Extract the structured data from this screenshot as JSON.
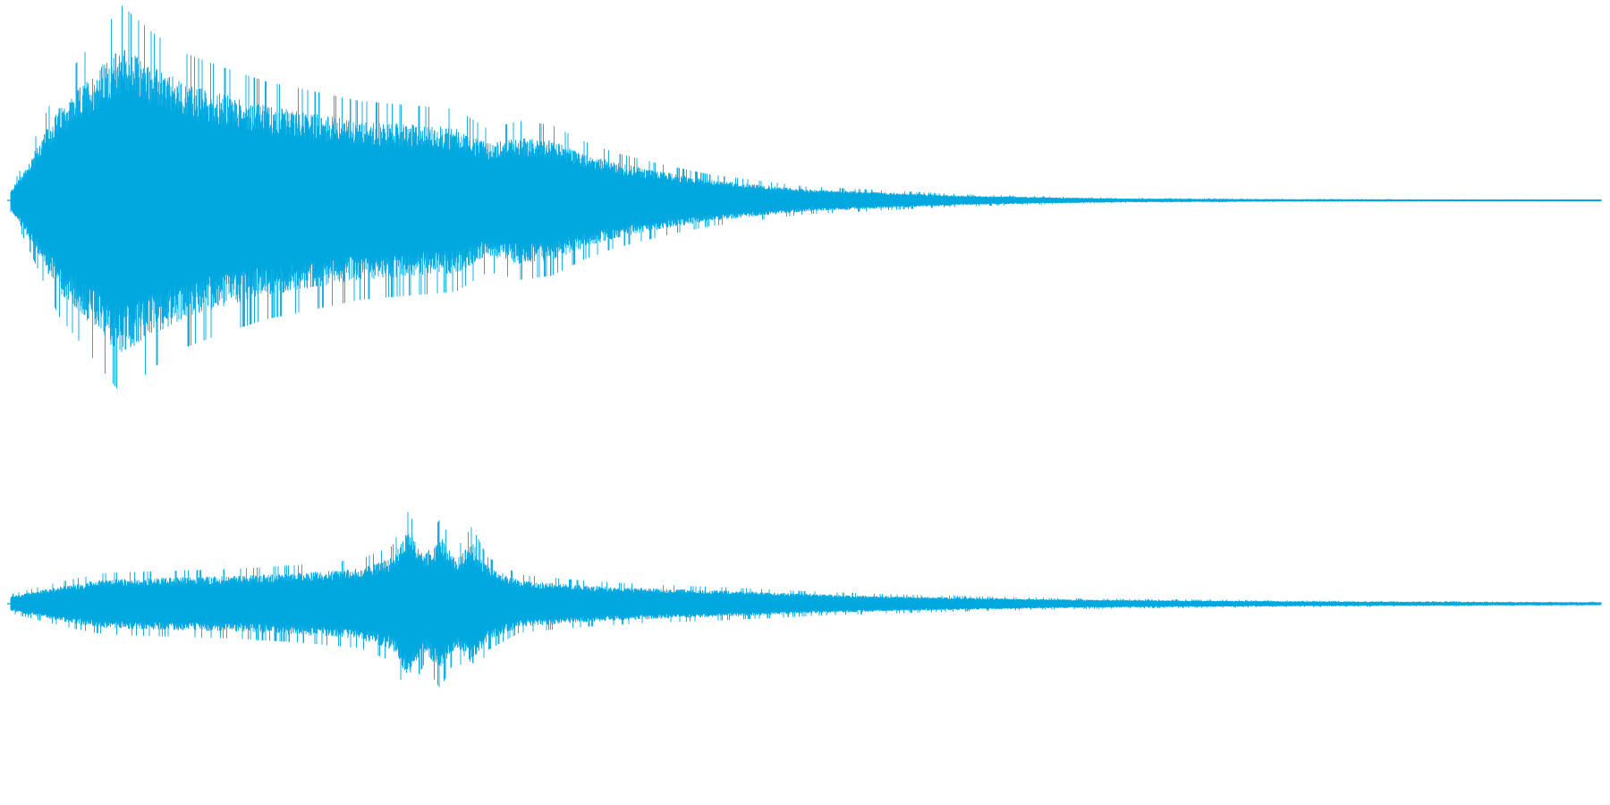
{
  "waveform": {
    "channels": [
      {
        "name": "",
        "envelope": [
          [
            0.0,
            0.06
          ],
          [
            0.01,
            0.22
          ],
          [
            0.03,
            0.58
          ],
          [
            0.05,
            0.78
          ],
          [
            0.07,
            0.98
          ],
          [
            0.09,
            0.84
          ],
          [
            0.11,
            0.74
          ],
          [
            0.13,
            0.68
          ],
          [
            0.16,
            0.6
          ],
          [
            0.19,
            0.55
          ],
          [
            0.22,
            0.5
          ],
          [
            0.25,
            0.48
          ],
          [
            0.28,
            0.46
          ],
          [
            0.3,
            0.36
          ],
          [
            0.32,
            0.4
          ],
          [
            0.34,
            0.38
          ],
          [
            0.36,
            0.3
          ],
          [
            0.38,
            0.24
          ],
          [
            0.41,
            0.18
          ],
          [
            0.44,
            0.13
          ],
          [
            0.47,
            0.1
          ],
          [
            0.5,
            0.07
          ],
          [
            0.55,
            0.05
          ],
          [
            0.6,
            0.03
          ],
          [
            0.65,
            0.02
          ],
          [
            0.7,
            0.012
          ],
          [
            0.8,
            0.008
          ],
          [
            0.9,
            0.006
          ],
          [
            1.0,
            0.005
          ]
        ]
      },
      {
        "name": "",
        "envelope": [
          [
            0.0,
            0.1
          ],
          [
            0.02,
            0.18
          ],
          [
            0.04,
            0.26
          ],
          [
            0.06,
            0.32
          ],
          [
            0.1,
            0.34
          ],
          [
            0.14,
            0.36
          ],
          [
            0.18,
            0.4
          ],
          [
            0.22,
            0.46
          ],
          [
            0.24,
            0.6
          ],
          [
            0.25,
            0.96
          ],
          [
            0.26,
            0.62
          ],
          [
            0.27,
            0.88
          ],
          [
            0.28,
            0.56
          ],
          [
            0.29,
            0.8
          ],
          [
            0.3,
            0.48
          ],
          [
            0.32,
            0.3
          ],
          [
            0.36,
            0.24
          ],
          [
            0.4,
            0.2
          ],
          [
            0.45,
            0.17
          ],
          [
            0.5,
            0.13
          ],
          [
            0.55,
            0.1
          ],
          [
            0.6,
            0.08
          ],
          [
            0.65,
            0.06
          ],
          [
            0.7,
            0.05
          ],
          [
            0.8,
            0.035
          ],
          [
            0.9,
            0.025
          ],
          [
            1.0,
            0.02
          ]
        ]
      }
    ],
    "colors": {
      "wave": "#00a8e0",
      "background": "#ffffff"
    }
  }
}
